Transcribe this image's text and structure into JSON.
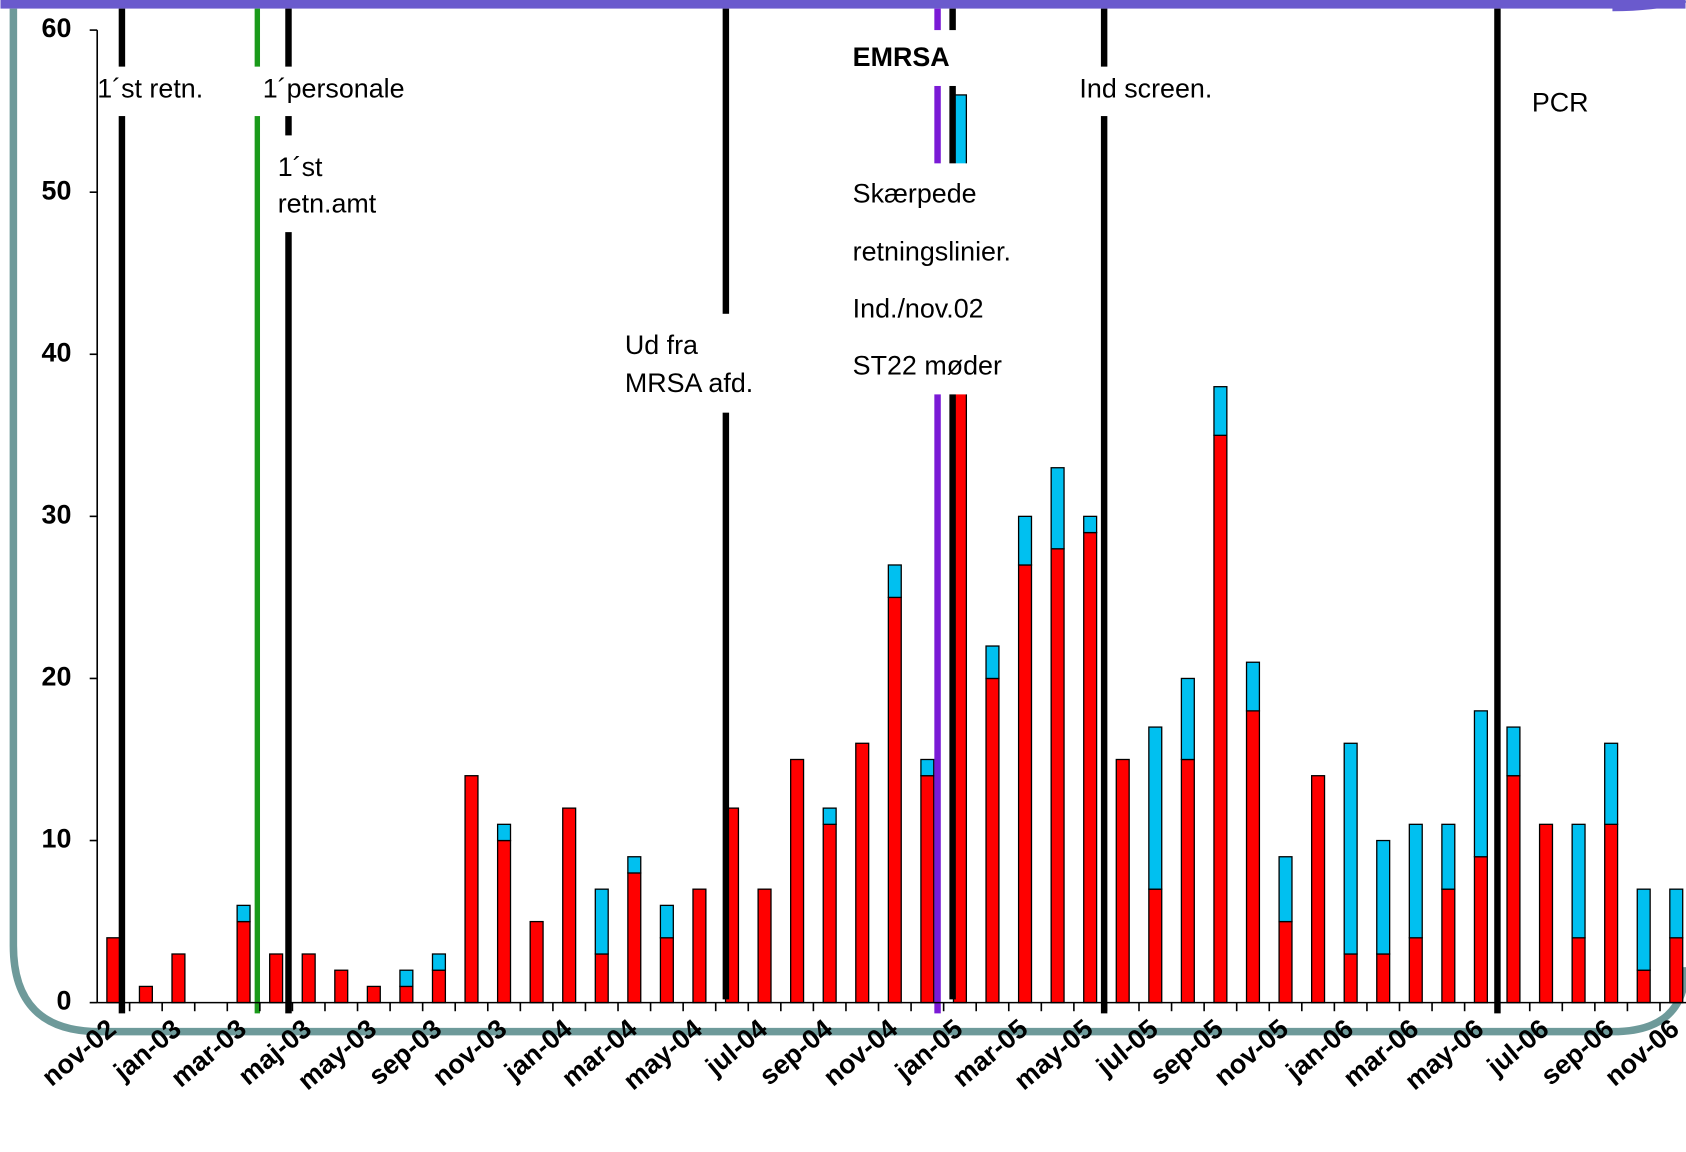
{
  "chart_data": {
    "type": "bar",
    "stacked": true,
    "categories": [
      "nov-02",
      null,
      "jan-03",
      null,
      "mar-03",
      null,
      "maj-03",
      null,
      "may-03",
      null,
      "sep-03",
      null,
      "nov-03",
      null,
      "jan-04",
      null,
      "mar-04",
      null,
      "may-04",
      null,
      "jul-04",
      null,
      "sep-04",
      null,
      "nov-04",
      null,
      "jan-05",
      null,
      "mar-05",
      null,
      "may-05",
      null,
      "jul-05",
      null,
      "sep-05",
      null,
      "nov-05",
      null,
      "jan-06",
      null,
      "mar-06",
      null,
      "may-06",
      null,
      "jul-06",
      null,
      "sep-06",
      null,
      "nov-06"
    ],
    "series": [
      {
        "color": "#ff0000",
        "values": [
          4,
          1,
          3,
          0,
          5,
          3,
          3,
          2,
          1,
          1,
          2,
          14,
          10,
          5,
          12,
          3,
          8,
          4,
          7,
          12,
          7,
          15,
          11,
          16,
          25,
          14,
          50,
          20,
          27,
          28,
          29,
          15,
          7,
          15,
          35,
          18,
          5,
          14,
          3,
          3,
          4,
          7,
          9,
          14,
          11,
          4,
          11,
          2,
          4
        ]
      },
      {
        "color": "#00c0f0",
        "values": [
          0,
          0,
          0,
          0,
          1,
          0,
          0,
          0,
          0,
          1,
          1,
          0,
          1,
          0,
          0,
          4,
          1,
          2,
          0,
          0,
          0,
          0,
          1,
          0,
          2,
          1,
          6,
          2,
          3,
          5,
          1,
          0,
          10,
          5,
          3,
          3,
          4,
          0,
          13,
          7,
          7,
          4,
          9,
          3,
          0,
          7,
          5,
          5,
          3
        ]
      }
    ],
    "ylim": [
      0,
      60
    ],
    "yticks": [
      0,
      10,
      20,
      30,
      40,
      50,
      60
    ],
    "annotations": [
      [
        "1´st retn."
      ],
      [
        "1´personale"
      ],
      [
        "1´st",
        "retn.amt"
      ],
      [
        "Ud fra",
        "MRSA afd."
      ],
      [
        "EMRSA"
      ],
      [
        "Skærpede"
      ],
      [
        "retningslinier."
      ],
      [
        "Ind./nov.02"
      ],
      [
        "ST22 møder"
      ],
      [
        "Ind screen."
      ],
      [
        "PCR"
      ]
    ]
  }
}
